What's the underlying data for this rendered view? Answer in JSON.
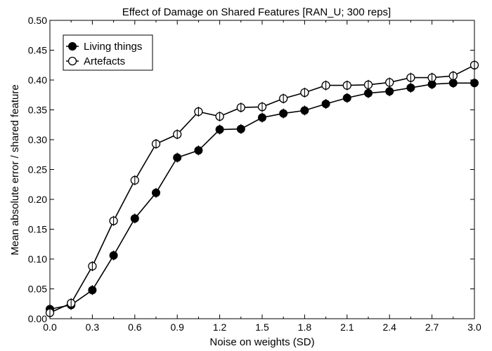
{
  "chart_data": {
    "type": "line",
    "title": "Effect of Damage on Shared Features [RAN_U; 300 reps]",
    "xlabel": "Noise on weights (SD)",
    "ylabel": "Mean absolute error / shared feature",
    "xlim": [
      0.0,
      3.0
    ],
    "ylim": [
      0.0,
      0.5
    ],
    "xticks": [
      "0.0",
      "0.3",
      "0.6",
      "0.9",
      "1.2",
      "1.5",
      "1.8",
      "2.1",
      "2.4",
      "2.7",
      "3.0"
    ],
    "yticks": [
      "0.00",
      "0.05",
      "0.10",
      "0.15",
      "0.20",
      "0.25",
      "0.30",
      "0.35",
      "0.40",
      "0.45",
      "0.50"
    ],
    "grid": false,
    "legend_position": "top-left",
    "x": [
      0.0,
      0.15,
      0.3,
      0.45,
      0.6,
      0.75,
      0.9,
      1.05,
      1.2,
      1.35,
      1.5,
      1.65,
      1.8,
      1.95,
      2.1,
      2.25,
      2.4,
      2.55,
      2.7,
      2.85,
      3.0
    ],
    "series": [
      {
        "name": "Living things",
        "marker": "filled-circle",
        "color": "#000000",
        "values": [
          0.016,
          0.023,
          0.048,
          0.106,
          0.168,
          0.211,
          0.27,
          0.282,
          0.317,
          0.318,
          0.337,
          0.344,
          0.349,
          0.36,
          0.37,
          0.378,
          0.381,
          0.387,
          0.393,
          0.395,
          0.395
        ]
      },
      {
        "name": "Artefacts",
        "marker": "open-circle",
        "color": "#000000",
        "values": [
          0.01,
          0.026,
          0.088,
          0.164,
          0.232,
          0.293,
          0.309,
          0.347,
          0.339,
          0.354,
          0.355,
          0.369,
          0.379,
          0.391,
          0.391,
          0.392,
          0.396,
          0.404,
          0.404,
          0.407,
          0.425
        ]
      }
    ]
  }
}
